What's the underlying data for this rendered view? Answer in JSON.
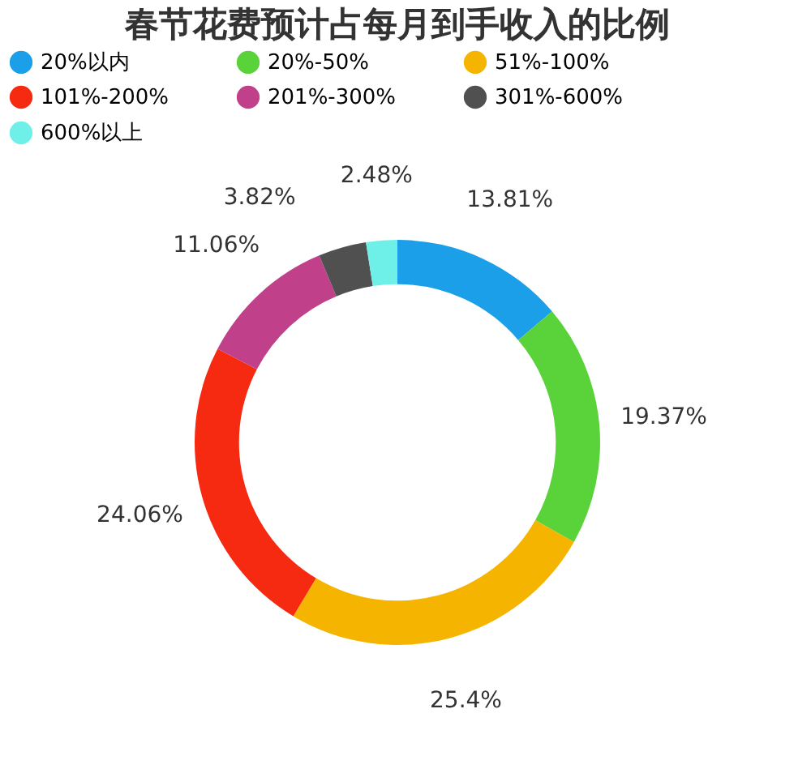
{
  "chart_data": {
    "type": "donut",
    "title": "春节花费预计占每月到手收入的比例",
    "categories": [
      "20%以内",
      "20%-50%",
      "51%-100%",
      "101%-200%",
      "201%-300%",
      "301%-600%",
      "600%以上"
    ],
    "values": [
      13.81,
      19.37,
      25.4,
      24.06,
      11.06,
      3.82,
      2.48
    ],
    "colors": [
      "#1a9fe8",
      "#5ad23a",
      "#f5b400",
      "#f52a10",
      "#c0408a",
      "#505050",
      "#6ef0e8"
    ],
    "value_labels": [
      "13.81%",
      "19.37%",
      "25.4%",
      "24.06%",
      "11.06%",
      "3.82%",
      "2.48%"
    ],
    "legend": "top"
  }
}
